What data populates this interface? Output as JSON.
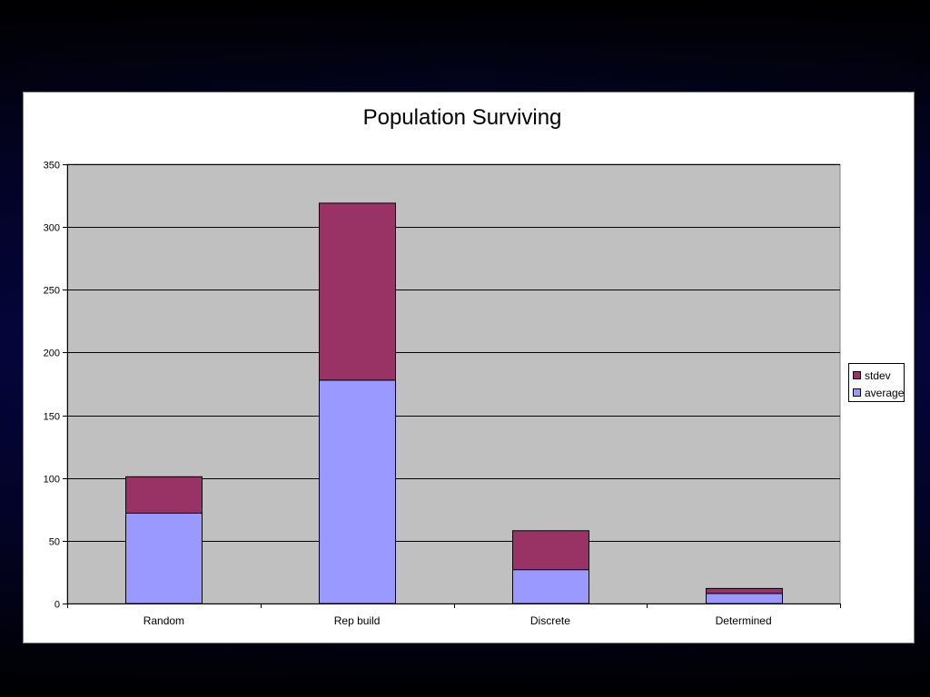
{
  "chart_data": {
    "type": "bar",
    "stacked": true,
    "title": "Population Surviving",
    "xlabel": "",
    "ylabel": "",
    "categories": [
      "Random",
      "Rep build",
      "Discrete",
      "Determined"
    ],
    "ylim": [
      0,
      350
    ],
    "yticks": [
      0,
      50,
      100,
      150,
      200,
      250,
      300,
      350
    ],
    "grid": true,
    "legend_position": "right",
    "series": [
      {
        "name": "average",
        "values": [
          72,
          178,
          27,
          8
        ],
        "color": "#9999ff"
      },
      {
        "name": "stdev",
        "values": [
          29,
          141,
          31,
          4
        ],
        "color": "#993366"
      }
    ],
    "legend_order": [
      "stdev",
      "average"
    ],
    "plot_background": "#c0c0c0"
  }
}
